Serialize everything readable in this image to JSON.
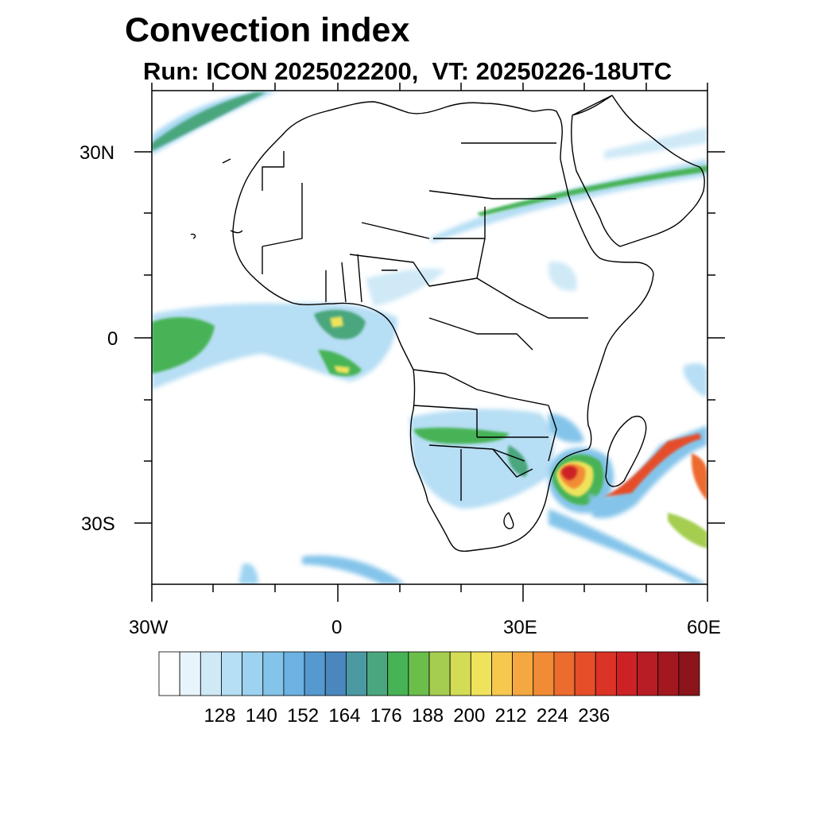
{
  "title": "Convection index",
  "subtitle": "Run: ICON 2025022200,  VT: 20250226-18UTC",
  "axes": {
    "lat_labels": [
      "30N",
      "0",
      "30S"
    ],
    "lon_labels": [
      "30W",
      "0",
      "30E",
      "60E"
    ]
  },
  "colorbar": {
    "tick_labels": [
      "128",
      "140",
      "152",
      "164",
      "176",
      "188",
      "200",
      "212",
      "224",
      "236"
    ],
    "colors": [
      "#ffffff",
      "#e8f4fb",
      "#cfe9f7",
      "#b6def4",
      "#9dd3f1",
      "#84c4ea",
      "#6cb2e2",
      "#5699cf",
      "#4a87bf",
      "#4b9aa3",
      "#4aa67d",
      "#47b356",
      "#6bbe4a",
      "#a5cd4f",
      "#d2dc55",
      "#f0e35c",
      "#f7c84e",
      "#f6a840",
      "#f28b36",
      "#ec6b2e",
      "#e54e29",
      "#db3326",
      "#cc2226",
      "#b81c24",
      "#a3181f",
      "#8c141b"
    ]
  },
  "features": {
    "cyclone": "Mozambique Channel tropical cyclone"
  }
}
